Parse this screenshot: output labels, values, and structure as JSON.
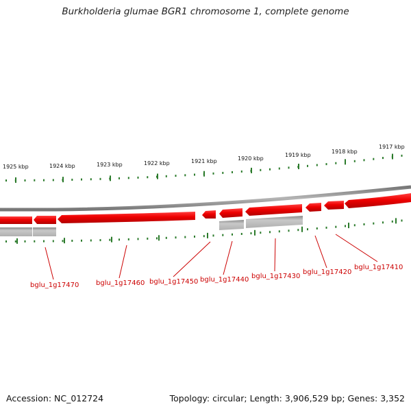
{
  "title": "Burkholderia glumae BGR1 chromosome 1, complete genome",
  "footer": {
    "accession": "Accession: NC_012724",
    "topology": "Topology: circular; Length: 3,906,529 bp; Genes: 3,352"
  },
  "ruler": {
    "ticks": [
      "1925 kbp",
      "1924 kbp",
      "1923 kbp",
      "1922 kbp",
      "1921 kbp",
      "1920 kbp",
      "1919 kbp",
      "1918 kbp",
      "1917 kbp"
    ]
  },
  "colors": {
    "gene_forward": "#ee0000",
    "gene_grey": "#b8b8b8",
    "backbone": "#8a8a8a",
    "tick_green": "#2a7a2a",
    "label_red": "#cc0000"
  },
  "genes": [
    {
      "id": "bglu_1g17470"
    },
    {
      "id": "bglu_1g17460"
    },
    {
      "id": "bglu_1g17450"
    },
    {
      "id": "bglu_1g17440"
    },
    {
      "id": "bglu_1g17430"
    },
    {
      "id": "bglu_1g17420"
    },
    {
      "id": "bglu_1g17410"
    }
  ]
}
